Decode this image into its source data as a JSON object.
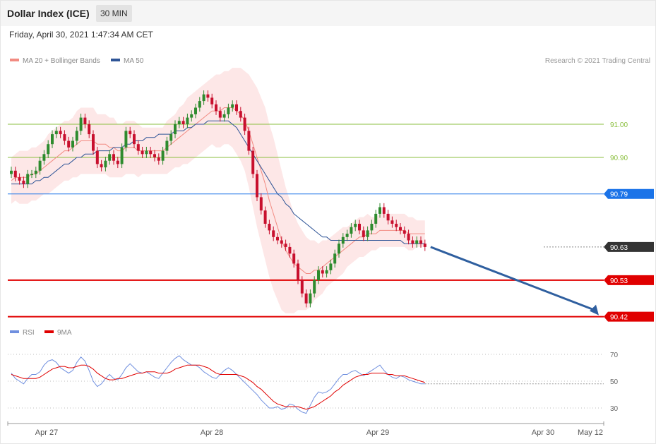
{
  "header": {
    "title": "Dollar Index (ICE)",
    "interval": "30 MIN"
  },
  "subtitle": "Friday, April 30, 2021 1:47:34 AM CET",
  "legend_main": [
    {
      "label": "MA 20 + Bollinger Bands",
      "color": "#f28b82"
    },
    {
      "label": "MA 50",
      "color": "#2f5597"
    }
  ],
  "copyright": "Research © 2021 Trading Central",
  "legend_rsi": [
    {
      "label": "RSI",
      "color": "#6f8fdf"
    },
    {
      "label": "9MA",
      "color": "#e00000"
    }
  ],
  "colors": {
    "up": "#2e8b2e",
    "down": "#c8102e",
    "pivot": "#1a73e8",
    "support": "#e00000",
    "resistance": "#8bbf3f",
    "last": "#333333",
    "arrow": "#2f5f9f",
    "band": "#fde3e3"
  },
  "chart_data": [
    {
      "type": "line",
      "name": "price",
      "x_labels": [
        "Apr 27",
        "Apr 28",
        "Apr 29",
        "Apr 30",
        "May 12"
      ],
      "ylim": [
        90.33,
        91.12
      ],
      "levels": [
        {
          "value": 91.0,
          "label": "91.00",
          "kind": "resistance"
        },
        {
          "value": 90.9,
          "label": "90.90",
          "kind": "resistance"
        },
        {
          "value": 90.79,
          "label": "90.79",
          "kind": "pivot"
        },
        {
          "value": 90.63,
          "label": "90.63",
          "kind": "last"
        },
        {
          "value": 90.53,
          "label": "90.53",
          "kind": "support"
        },
        {
          "value": 90.42,
          "label": "90.42",
          "kind": "support"
        }
      ],
      "close": [
        90.86,
        90.84,
        90.83,
        90.82,
        90.85,
        90.85,
        90.86,
        90.89,
        90.91,
        90.94,
        90.97,
        90.98,
        90.97,
        90.95,
        90.93,
        90.95,
        90.98,
        91.02,
        91.0,
        90.97,
        90.92,
        90.88,
        90.87,
        90.89,
        90.91,
        90.89,
        90.88,
        90.93,
        90.98,
        90.97,
        90.94,
        90.92,
        90.91,
        90.92,
        90.91,
        90.9,
        90.89,
        90.92,
        90.95,
        90.97,
        91.0,
        91.01,
        91.0,
        91.02,
        91.03,
        91.05,
        91.07,
        91.09,
        91.08,
        91.06,
        91.04,
        91.02,
        91.03,
        91.05,
        91.06,
        91.04,
        91.02,
        90.98,
        90.92,
        90.85,
        90.78,
        90.74,
        90.7,
        90.68,
        90.66,
        90.65,
        90.64,
        90.63,
        90.61,
        90.58,
        90.53,
        90.49,
        90.46,
        90.49,
        90.53,
        90.56,
        90.55,
        90.56,
        90.58,
        90.61,
        90.64,
        90.66,
        90.67,
        90.69,
        90.7,
        90.68,
        90.66,
        90.68,
        90.7,
        90.73,
        90.75,
        90.73,
        90.71,
        90.7,
        90.69,
        90.68,
        90.67,
        90.65,
        90.64,
        90.65,
        90.64,
        90.63
      ],
      "ma20": [
        90.83,
        90.84,
        90.84,
        90.84,
        90.84,
        90.85,
        90.85,
        90.86,
        90.87,
        90.88,
        90.89,
        90.9,
        90.91,
        90.92,
        90.92,
        90.93,
        90.94,
        90.95,
        90.95,
        90.95,
        90.95,
        90.94,
        90.94,
        90.94,
        90.93,
        90.93,
        90.92,
        90.92,
        90.93,
        90.93,
        90.93,
        90.92,
        90.92,
        90.92,
        90.92,
        90.92,
        90.92,
        90.92,
        90.93,
        90.94,
        90.95,
        90.96,
        90.97,
        90.98,
        90.99,
        91.0,
        91.01,
        91.02,
        91.03,
        91.04,
        91.04,
        91.04,
        91.05,
        91.05,
        91.05,
        91.04,
        91.03,
        91.01,
        90.98,
        90.94,
        90.9,
        90.86,
        90.82,
        90.77,
        90.73,
        90.69,
        90.65,
        90.62,
        90.6,
        90.58,
        90.57,
        90.56,
        90.55,
        90.55,
        90.56,
        90.56,
        90.57,
        90.58,
        90.59,
        90.6,
        90.61,
        90.62,
        90.63,
        90.64,
        90.65,
        90.66,
        90.66,
        90.67,
        90.67,
        90.67,
        90.68,
        90.68,
        90.68,
        90.68,
        90.68,
        90.68,
        90.68,
        90.67,
        90.67,
        90.67,
        90.67,
        90.67
      ],
      "ma50": [
        90.82,
        90.82,
        90.82,
        90.82,
        90.82,
        90.82,
        90.83,
        90.83,
        90.84,
        90.84,
        90.85,
        90.86,
        90.87,
        90.88,
        90.88,
        90.89,
        90.9,
        90.9,
        90.91,
        90.91,
        90.91,
        90.92,
        90.92,
        90.92,
        90.92,
        90.93,
        90.93,
        90.93,
        90.94,
        90.94,
        90.95,
        90.95,
        90.95,
        90.96,
        90.96,
        90.96,
        90.97,
        90.97,
        90.97,
        90.97,
        90.98,
        90.98,
        90.98,
        90.99,
        90.99,
        91.0,
        91.0,
        91.0,
        91.01,
        91.01,
        91.01,
        91.01,
        91.01,
        91.01,
        91.0,
        90.99,
        90.97,
        90.95,
        90.93,
        90.91,
        90.89,
        90.87,
        90.85,
        90.83,
        90.81,
        90.79,
        90.78,
        90.76,
        90.75,
        90.73,
        90.72,
        90.71,
        90.7,
        90.69,
        90.68,
        90.67,
        90.66,
        90.66,
        90.65,
        90.65,
        90.65,
        90.65,
        90.65,
        90.65,
        90.65,
        90.65,
        90.65,
        90.65,
        90.65,
        90.65,
        90.65,
        90.65,
        90.65,
        90.65,
        90.65,
        90.65,
        90.64,
        90.64,
        90.64,
        90.64,
        90.64,
        90.64
      ],
      "bb_width": [
        0.07,
        0.07,
        0.08,
        0.08,
        0.08,
        0.08,
        0.08,
        0.08,
        0.08,
        0.09,
        0.09,
        0.09,
        0.09,
        0.09,
        0.09,
        0.09,
        0.1,
        0.1,
        0.1,
        0.1,
        0.1,
        0.09,
        0.09,
        0.09,
        0.09,
        0.09,
        0.08,
        0.08,
        0.08,
        0.08,
        0.08,
        0.08,
        0.07,
        0.07,
        0.07,
        0.07,
        0.07,
        0.07,
        0.08,
        0.08,
        0.08,
        0.09,
        0.09,
        0.1,
        0.1,
        0.1,
        0.1,
        0.1,
        0.1,
        0.1,
        0.11,
        0.11,
        0.11,
        0.11,
        0.12,
        0.13,
        0.14,
        0.15,
        0.17,
        0.19,
        0.21,
        0.22,
        0.23,
        0.23,
        0.23,
        0.22,
        0.21,
        0.19,
        0.17,
        0.15,
        0.13,
        0.12,
        0.11,
        0.1,
        0.09,
        0.08,
        0.08,
        0.07,
        0.07,
        0.07,
        0.07,
        0.07,
        0.06,
        0.06,
        0.06,
        0.06,
        0.06,
        0.06,
        0.05,
        0.05,
        0.05,
        0.05,
        0.05,
        0.05,
        0.05,
        0.05,
        0.05,
        0.05,
        0.05,
        0.04,
        0.04,
        0.04
      ]
    },
    {
      "type": "line",
      "name": "rsi",
      "ylim": [
        20,
        80
      ],
      "y_ticks": [
        70,
        50,
        30
      ],
      "rsi": [
        56,
        52,
        50,
        48,
        52,
        55,
        55,
        57,
        62,
        65,
        66,
        64,
        60,
        58,
        56,
        58,
        64,
        68,
        65,
        58,
        50,
        46,
        48,
        52,
        55,
        52,
        51,
        55,
        60,
        63,
        60,
        57,
        56,
        57,
        55,
        53,
        52,
        56,
        60,
        64,
        67,
        69,
        66,
        64,
        62,
        62,
        60,
        57,
        55,
        53,
        52,
        55,
        58,
        60,
        58,
        55,
        52,
        49,
        46,
        43,
        40,
        36,
        33,
        30,
        30,
        31,
        29,
        30,
        33,
        32,
        29,
        27,
        26,
        32,
        38,
        42,
        41,
        42,
        44,
        48,
        52,
        55,
        55,
        57,
        58,
        56,
        54,
        56,
        58,
        60,
        62,
        58,
        55,
        53,
        52,
        54,
        53,
        51,
        50,
        49,
        48,
        48
      ],
      "ma9": [
        55,
        54,
        53,
        52,
        52,
        52,
        52,
        53,
        55,
        57,
        59,
        60,
        61,
        61,
        60,
        60,
        61,
        62,
        62,
        61,
        59,
        56,
        54,
        52,
        51,
        51,
        52,
        52,
        53,
        54,
        55,
        56,
        56,
        57,
        57,
        57,
        56,
        56,
        56,
        57,
        59,
        60,
        61,
        62,
        62,
        62,
        62,
        61,
        60,
        58,
        56,
        55,
        55,
        55,
        55,
        55,
        54,
        53,
        51,
        49,
        46,
        44,
        41,
        38,
        35,
        33,
        32,
        31,
        31,
        31,
        31,
        30,
        29,
        30,
        31,
        33,
        35,
        37,
        39,
        42,
        44,
        47,
        49,
        51,
        53,
        54,
        55,
        55,
        56,
        56,
        56,
        56,
        55,
        55,
        54,
        54,
        54,
        53,
        52,
        51,
        50,
        49
      ]
    }
  ]
}
